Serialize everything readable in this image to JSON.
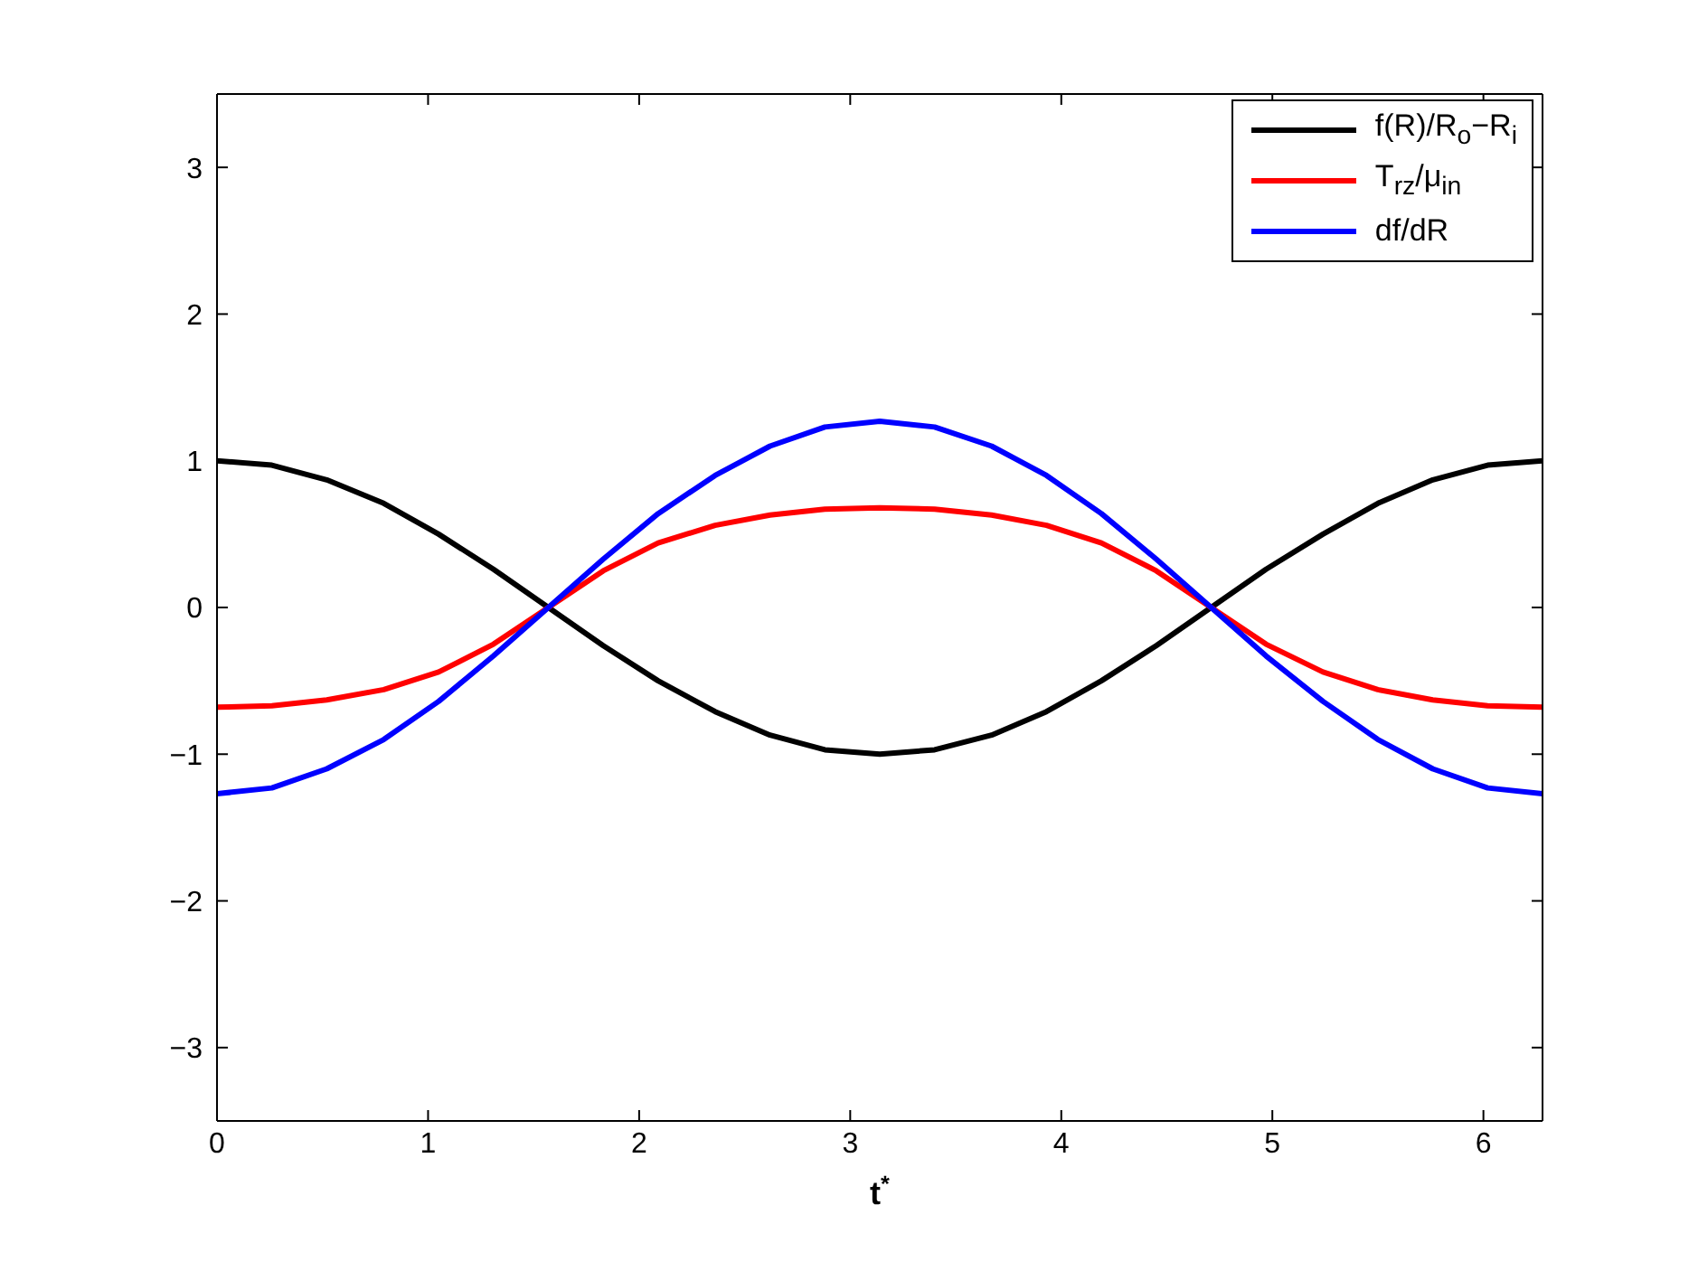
{
  "chart_data": {
    "type": "line",
    "xlabel": "t$^{*}$",
    "x": [
      0,
      0.26,
      0.52,
      0.79,
      1.05,
      1.31,
      1.57,
      1.83,
      2.09,
      2.36,
      2.62,
      2.88,
      3.14,
      3.4,
      3.67,
      3.93,
      4.19,
      4.45,
      4.71,
      4.97,
      5.24,
      5.5,
      5.76,
      6.02,
      6.28
    ],
    "series": [
      {
        "name": "f(R)/R$_{o}$−R$_{i}$",
        "color": "#000000",
        "values": [
          1,
          0.97,
          0.87,
          0.71,
          0.5,
          0.26,
          0,
          -0.26,
          -0.5,
          -0.71,
          -0.87,
          -0.97,
          -1,
          -0.97,
          -0.87,
          -0.71,
          -0.5,
          -0.26,
          0,
          0.26,
          0.5,
          0.71,
          0.87,
          0.97,
          1
        ]
      },
      {
        "name": "T$_{rz}$/μ$_{in}$",
        "color": "#ff0000",
        "values": [
          -0.68,
          -0.67,
          -0.63,
          -0.56,
          -0.44,
          -0.25,
          0,
          0.25,
          0.44,
          0.56,
          0.63,
          0.67,
          0.68,
          0.67,
          0.63,
          0.56,
          0.44,
          0.25,
          0,
          -0.25,
          -0.44,
          -0.56,
          -0.63,
          -0.67,
          -0.68
        ]
      },
      {
        "name": "df/dR",
        "color": "#0000ff",
        "values": [
          -1.27,
          -1.23,
          -1.1,
          -0.9,
          -0.64,
          -0.33,
          0,
          0.33,
          0.64,
          0.9,
          1.1,
          1.23,
          1.27,
          1.23,
          1.1,
          0.9,
          0.64,
          0.33,
          0,
          -0.33,
          -0.64,
          -0.9,
          -1.1,
          -1.23,
          -1.27
        ]
      }
    ],
    "xlim": [
      0,
      6.28
    ],
    "xticks": [
      0,
      1,
      2,
      3,
      4,
      5,
      6
    ],
    "ylim": [
      -3.5,
      3.5
    ],
    "yticks": [
      -3,
      -2,
      -1,
      0,
      1,
      2,
      3
    ],
    "grid": false,
    "legend": "top right",
    "marker": "none",
    "line_style": "solid"
  }
}
